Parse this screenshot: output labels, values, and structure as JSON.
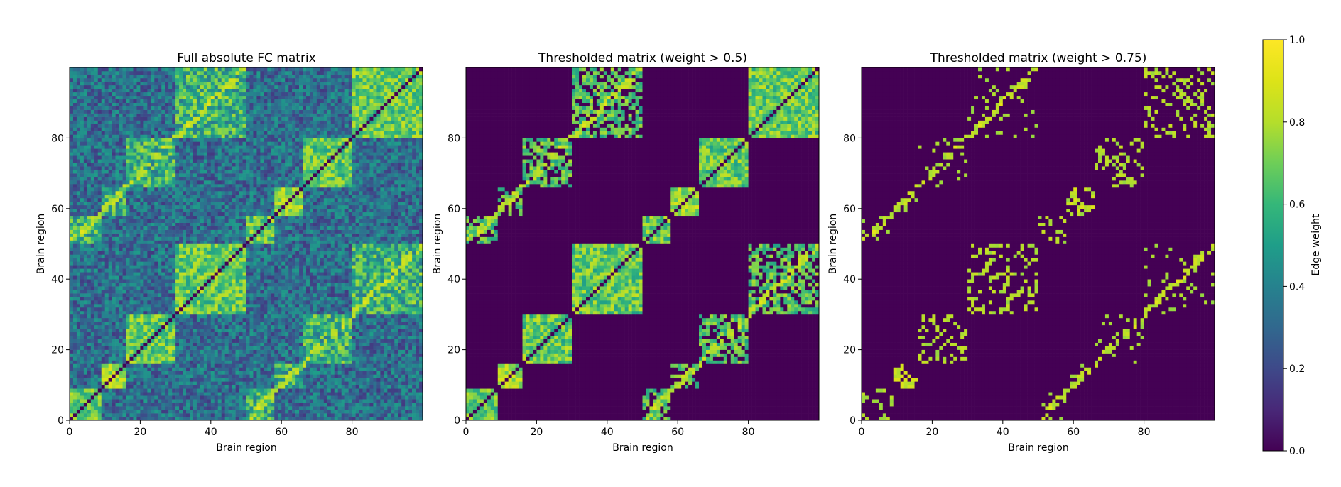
{
  "chart_data": [
    {
      "type": "heatmap",
      "title": "Full absolute FC matrix",
      "xlabel": "Brain region",
      "ylabel": "Brain region",
      "n_regions": 100,
      "xlim": [
        0,
        99
      ],
      "ylim": [
        0,
        99
      ],
      "xticks": [
        0,
        20,
        40,
        60,
        80
      ],
      "yticks": [
        0,
        20,
        40,
        60,
        80
      ],
      "threshold": null,
      "diagonal_value": 0
    },
    {
      "type": "heatmap",
      "title": "Thresholded matrix (weight > 0.5)",
      "xlabel": "Brain region",
      "ylabel": "Brain region",
      "n_regions": 100,
      "xlim": [
        0,
        99
      ],
      "ylim": [
        0,
        99
      ],
      "xticks": [
        0,
        20,
        40,
        60,
        80
      ],
      "yticks": [
        0,
        20,
        40,
        60,
        80
      ],
      "threshold": 0.5,
      "diagonal_value": 0
    },
    {
      "type": "heatmap",
      "title": "Thresholded matrix (weight > 0.75)",
      "xlabel": "Brain region",
      "ylabel": "Brain region",
      "n_regions": 100,
      "xlim": [
        0,
        99
      ],
      "ylim": [
        0,
        99
      ],
      "xticks": [
        0,
        20,
        40,
        60,
        80
      ],
      "yticks": [
        0,
        20,
        40,
        60,
        80
      ],
      "threshold": 0.75,
      "diagonal_value": 0
    }
  ],
  "colorbar": {
    "label": "Edge weight",
    "colormap": "viridis",
    "range": [
      0,
      1
    ],
    "ticks": [
      "0.0",
      "0.2",
      "0.4",
      "0.6",
      "0.8",
      "1.0"
    ],
    "tick_values": [
      0,
      0.2,
      0.4,
      0.6,
      0.8,
      1.0
    ]
  }
}
